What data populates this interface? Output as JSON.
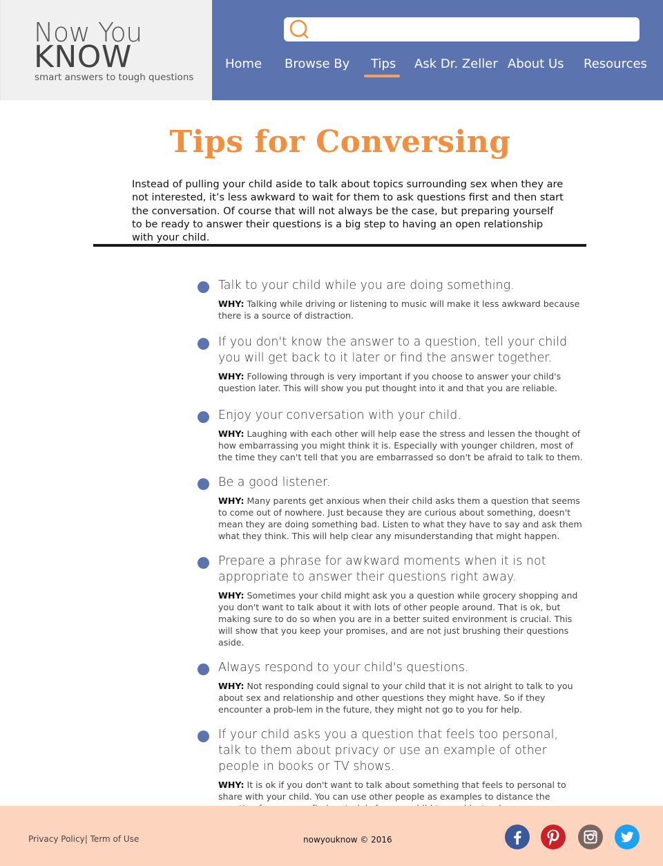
{
  "brand": {
    "line1": "Now You",
    "line2": "KNOW",
    "tagline": "smart answers to tough questions"
  },
  "search": {
    "placeholder": ""
  },
  "nav": {
    "items": [
      {
        "label": "Home"
      },
      {
        "label": "Browse By"
      },
      {
        "label": "Tips"
      },
      {
        "label": "Ask Dr. Zeller"
      },
      {
        "label": "About Us"
      },
      {
        "label": "Resources"
      }
    ],
    "active": "Tips"
  },
  "main": {
    "title": "Tips for Conversing",
    "intro": "Instead of pulling your child aside to talk about topics surrounding sex when they are not interested, it’s less awkward to wait for them to ask questions first and then start the conversation. Of course that will not always be the case, but preparing yourself to be ready to answer their questions is a big step to having an open relationship with your child.",
    "why_label": "WHY:",
    "tips": [
      {
        "title": "Talk to your child while you are doing something.",
        "why": "Talking while driving or listening to music will make it less awkward because there is a source of distraction."
      },
      {
        "title": "If you don't know the answer to a question, tell your child you will get back to it later or find the answer together.",
        "why": "Following through is very important if you choose to answer your child's question later. This will show you put thought into it and that you are reliable."
      },
      {
        "title": "Enjoy your conversation with your child.",
        "why": "Laughing with each other will help ease the stress and lessen the thought of how embarrassing you might think it is. Especially with younger children, most of the time they can't tell that you are embarrassed so don't be afraid to talk to them."
      },
      {
        "title": "Be a good listener.",
        "why": "Many parents get anxious when their child asks them a question that seems to come out of nowhere. Just because they are curious about something, doesn't mean they are doing something bad. Listen to what they have to say and ask them what they think. This will help clear any misunderstanding that might happen."
      },
      {
        "title": "Prepare a phrase for awkward moments when it is not appropriate to answer their questions right away.",
        "why": "Sometimes your child might ask you a question while grocery shopping and you don't want to talk about it with lots of other people around. That is ok, but making sure to do so when you are in a better suited environment is crucial. This will show that you keep your promises, and are not just brushing their questions aside."
      },
      {
        "title": "Always respond to your child's questions.",
        "why": "Not responding could signal to your child that it is not alright to talk to you about sex and relationship and other questions they might have. So if they encounter a prob-lem in the future, they might not go to you for help."
      },
      {
        "title": "If your child asks you a question that feels too personal, talk to them about privacy or use an example of other people in books or TV shows.",
        "why": "It is ok if you don't want to talk about something that feels to personal to share with your child. You can use other people as examples to distance the question from you or find materials for your child to read instead."
      }
    ]
  },
  "footer": {
    "privacy": "Privacy Policy",
    "separator": "|",
    "terms": " Term of Use",
    "copyright": "nowyouknow © 2016",
    "social": [
      {
        "icon": "facebook-icon",
        "color": "#3b5998"
      },
      {
        "icon": "pinterest-icon",
        "color": "#cb2027"
      },
      {
        "icon": "instagram-icon",
        "color": "#7a6560"
      },
      {
        "icon": "twitter-icon",
        "color": "#1da1f2"
      }
    ]
  },
  "colors": {
    "accent": "#f28f3e",
    "nav_bg": "#5b73ae",
    "footer_bg": "#fdd5bf",
    "logo_bg": "#f0f0f0"
  }
}
